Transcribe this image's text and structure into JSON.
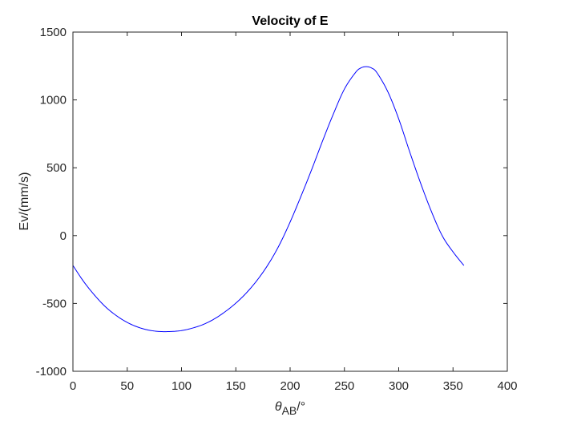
{
  "chart_data": {
    "type": "line",
    "title": "Velocity of E",
    "xlabel": {
      "symbol": "θ",
      "subscript": "AB",
      "suffix": "/°"
    },
    "ylabel": "Ev/(mm/s)",
    "xlim": [
      0,
      400
    ],
    "ylim": [
      -1000,
      1500
    ],
    "xticks": [
      0,
      50,
      100,
      150,
      200,
      250,
      300,
      350,
      400
    ],
    "yticks": [
      -1000,
      -500,
      0,
      500,
      1000,
      1500
    ],
    "grid": false,
    "legend": "none",
    "series": [
      {
        "color": "#0000ff",
        "x": [
          0,
          10,
          20,
          30,
          40,
          50,
          60,
          70,
          80,
          90,
          100,
          110,
          120,
          130,
          140,
          150,
          160,
          170,
          180,
          190,
          200,
          210,
          220,
          230,
          240,
          250,
          260,
          265,
          270,
          275,
          280,
          290,
          300,
          310,
          320,
          330,
          340,
          350,
          360
        ],
        "y": [
          -220,
          -340,
          -440,
          -525,
          -590,
          -640,
          -675,
          -697,
          -707,
          -707,
          -700,
          -682,
          -655,
          -615,
          -562,
          -498,
          -420,
          -325,
          -210,
          -70,
          100,
          290,
          490,
          700,
          900,
          1080,
          1200,
          1235,
          1245,
          1235,
          1200,
          1060,
          860,
          620,
          390,
          180,
          0,
          -120,
          -220
        ]
      }
    ]
  }
}
